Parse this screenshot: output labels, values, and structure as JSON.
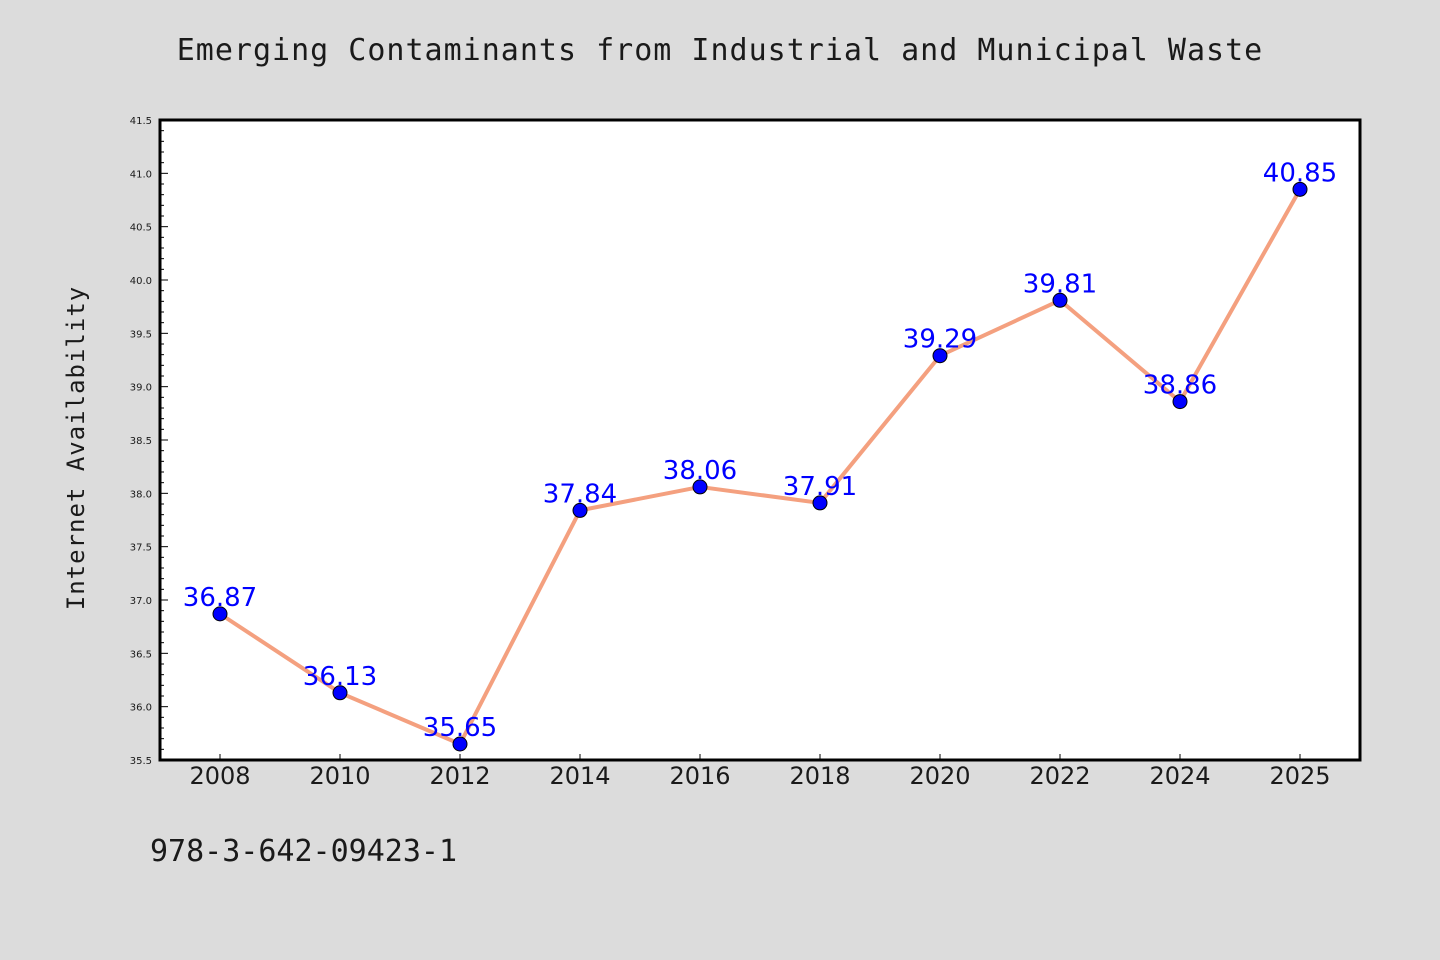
{
  "chart_data": {
    "type": "line",
    "title": "Emerging Contaminants from Industrial and Municipal Waste",
    "ylabel": "Internet Availability",
    "xlabel": "",
    "categories": [
      "2008",
      "2010",
      "2012",
      "2014",
      "2016",
      "2018",
      "2020",
      "2022",
      "2024",
      "2025"
    ],
    "series": [
      {
        "values": [
          36.87,
          36.13,
          35.65,
          37.84,
          38.06,
          37.91,
          39.29,
          39.81,
          38.86,
          40.85
        ]
      }
    ],
    "ylim": [
      35.5,
      41.5
    ],
    "yticks": [
      "35.5",
      "36.0",
      "36.5",
      "37.0",
      "37.5",
      "38.0",
      "38.5",
      "39.0",
      "39.5",
      "40.0",
      "40.5",
      "41.0",
      "41.5"
    ],
    "data_labels": [
      "36.87",
      "36.13",
      "35.65",
      "37.84",
      "38.06",
      "37.91",
      "39.29",
      "39.81",
      "38.86",
      "40.85"
    ],
    "grid": false,
    "colors": {
      "line": "#f4a07f",
      "marker": "#0000ff",
      "label": "#0000ff",
      "background": "#dcdcdc",
      "plot_background": "#ffffff"
    }
  },
  "footer": {
    "isbn": "978-3-642-09423-1"
  }
}
